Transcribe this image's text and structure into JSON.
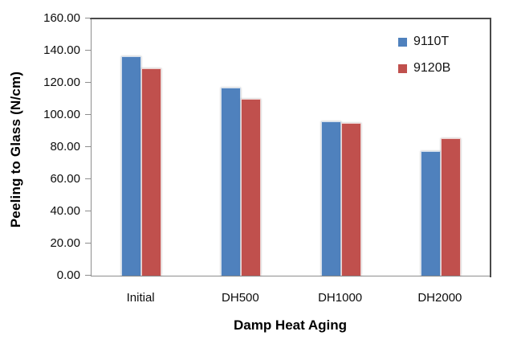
{
  "chart_data": {
    "type": "bar",
    "title": "",
    "categories": [
      "Initial",
      "DH500",
      "DH1000",
      "DH2000"
    ],
    "series": [
      {
        "name": "9110T",
        "color": "#4F81BD",
        "values": [
          136.5,
          117.0,
          96.0,
          77.5
        ]
      },
      {
        "name": "9120B",
        "color": "#C0504D",
        "values": [
          129.0,
          110.0,
          95.0,
          85.5
        ]
      }
    ],
    "xlabel": "Damp Heat Aging",
    "ylabel": "Peeling to Glass (N/cm)",
    "ylim": [
      0,
      160
    ],
    "ytick_step": 20,
    "ytick_labels": [
      "0.00",
      "20.00",
      "40.00",
      "60.00",
      "80.00",
      "100.00",
      "120.00",
      "140.00",
      "160.00"
    ],
    "grid": false,
    "legend_position": "top-right-inside",
    "axis_color": "#8e8e8e",
    "frame_color": "#4a4a4a"
  }
}
